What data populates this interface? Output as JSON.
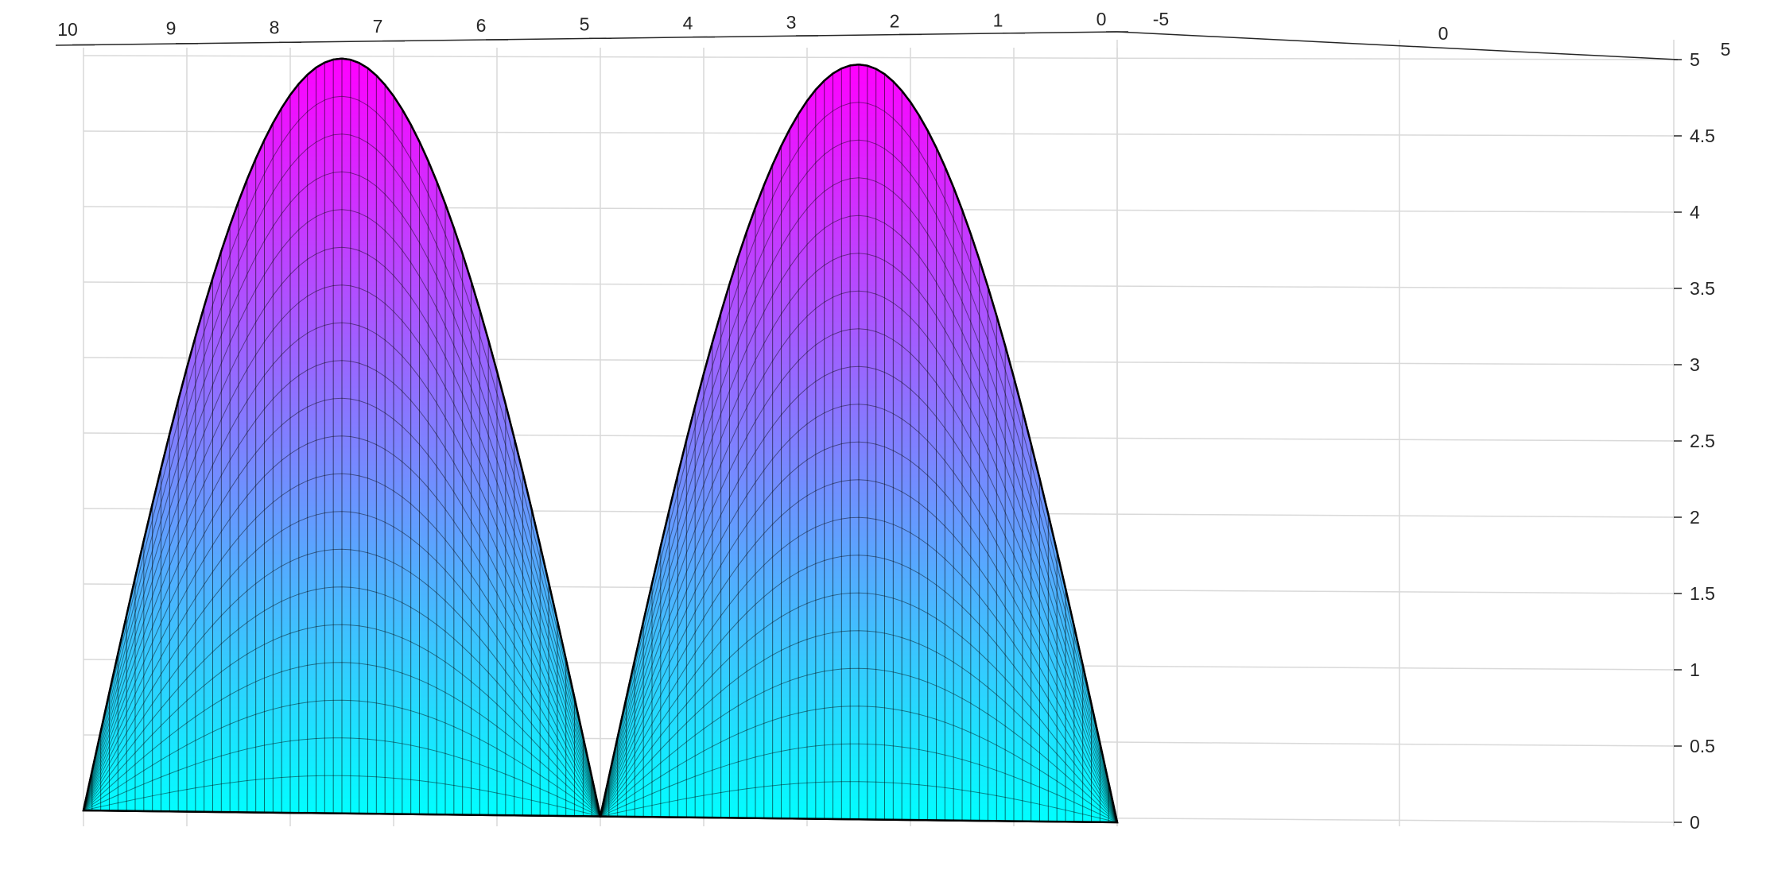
{
  "chart_data": {
    "type": "surface",
    "title": "",
    "xlabel": "",
    "ylabel": "",
    "zlabel": "",
    "colormap": "cool",
    "grid": true,
    "edge_color": "#000000",
    "colors": {
      "low": "#00FFFF",
      "high": "#FF00FF",
      "grid": "#d9d9d9",
      "axis": "#262626"
    },
    "x_axis": {
      "ticks": [
        "10",
        "9",
        "8",
        "7",
        "6",
        "5",
        "4",
        "3",
        "2",
        "1",
        "0"
      ],
      "range": [
        10,
        0
      ]
    },
    "y_axis": {
      "ticks": [
        "-5",
        "0",
        "5"
      ],
      "range": [
        -5,
        5
      ]
    },
    "z_axis": {
      "ticks": [
        "0",
        "0.5",
        "1",
        "1.5",
        "2",
        "2.5",
        "3",
        "3.5",
        "4",
        "4.5",
        "5"
      ],
      "range": [
        0,
        5
      ]
    },
    "surfaces": [
      {
        "name": "",
        "peak_x": 7.5,
        "peak_z": 5,
        "x_range": [
          10,
          5
        ]
      },
      {
        "name": "",
        "peak_x": 2.5,
        "peak_z": 5,
        "x_range": [
          5,
          0
        ]
      }
    ]
  }
}
